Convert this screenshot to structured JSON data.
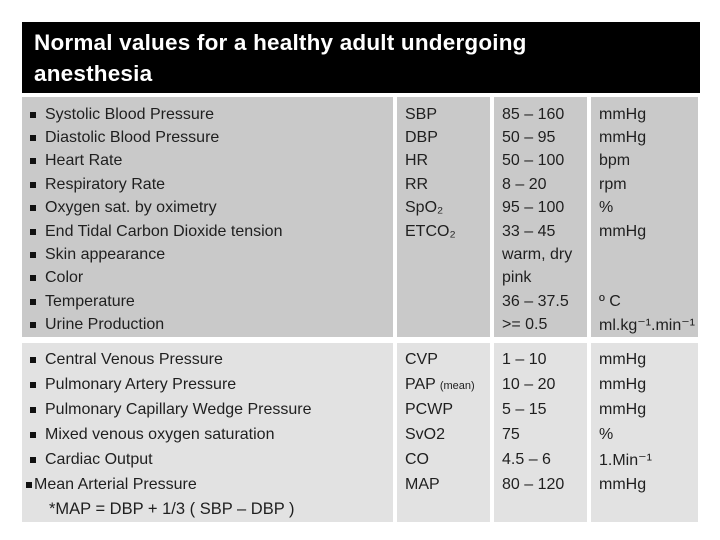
{
  "slide": {
    "title_lines": [
      "Normal values for a healthy adult undergoing",
      "anesthesia"
    ]
  },
  "table": {
    "sections": [
      {
        "name": "vitals",
        "rows": [
          {
            "param": "Systolic Blood Pressure",
            "abbr": "SBP",
            "abbr_note": "",
            "value": "85 – 160",
            "unit": "mmHg"
          },
          {
            "param": "Diastolic Blood Pressure",
            "abbr": "DBP",
            "abbr_note": "",
            "value": "50 – 95",
            "unit": "mmHg"
          },
          {
            "param": "Heart Rate",
            "abbr": "HR",
            "abbr_note": "",
            "value": "50 – 100",
            "unit": "bpm"
          },
          {
            "param": "Respiratory Rate",
            "abbr": "RR",
            "abbr_note": "",
            "value": "8 – 20",
            "unit": "rpm"
          },
          {
            "param": "Oxygen sat. by oximetry",
            "abbr": "SpO₂",
            "abbr_note": "",
            "value": "95 – 100",
            "unit": "%"
          },
          {
            "param": "End Tidal Carbon Dioxide tension",
            "abbr": "ETCO₂",
            "abbr_note": "",
            "value": "33 – 45",
            "unit": "mmHg"
          },
          {
            "param": "Skin appearance",
            "abbr": "",
            "abbr_note": "",
            "value": "warm, dry",
            "unit": ""
          },
          {
            "param": "Color",
            "abbr": "",
            "abbr_note": "",
            "value": "pink",
            "unit": ""
          },
          {
            "param": "Temperature",
            "abbr": "",
            "abbr_note": "",
            "value": "36 – 37.5",
            "unit": "º C"
          },
          {
            "param": "Urine Production",
            "abbr": "",
            "abbr_note": "",
            "value": ">= 0.5",
            "unit": "ml.kg⁻¹.min⁻¹"
          }
        ],
        "footnote": ""
      },
      {
        "name": "hemodynamics",
        "rows": [
          {
            "param": "Central Venous Pressure",
            "abbr": "CVP",
            "abbr_note": "",
            "value": "1 – 10",
            "unit": "mmHg"
          },
          {
            "param": "Pulmonary Artery Pressure",
            "abbr": "PAP",
            "abbr_note": "(mean)",
            "value": "10 – 20",
            "unit": "mmHg"
          },
          {
            "param": "Pulmonary Capillary Wedge Pressure",
            "abbr": "PCWP",
            "abbr_note": "",
            "value": "5 – 15",
            "unit": "mmHg"
          },
          {
            "param": "Mixed venous oxygen saturation",
            "abbr": "SvO2",
            "abbr_note": "",
            "value": "75",
            "unit": "%"
          },
          {
            "param": "Cardiac Output",
            "abbr": "CO",
            "abbr_note": "",
            "value": "4.5 – 6",
            "unit": "1.Min⁻¹"
          },
          {
            "param": "Mean Arterial Pressure",
            "abbr": "MAP",
            "abbr_note": "",
            "value": "80 – 120",
            "unit": "mmHg",
            "tight_bullet": true
          }
        ],
        "footnote": "*MAP = DBP + 1/3 ( SBP – DBP )"
      }
    ]
  },
  "colors": {
    "page_bg": "#ffffff",
    "title_bg": "#000000",
    "title_text": "#ffffff",
    "section1_bg": "#c9c9c9",
    "section2_bg": "#e2e2e2",
    "text": "#1f1f1f"
  }
}
